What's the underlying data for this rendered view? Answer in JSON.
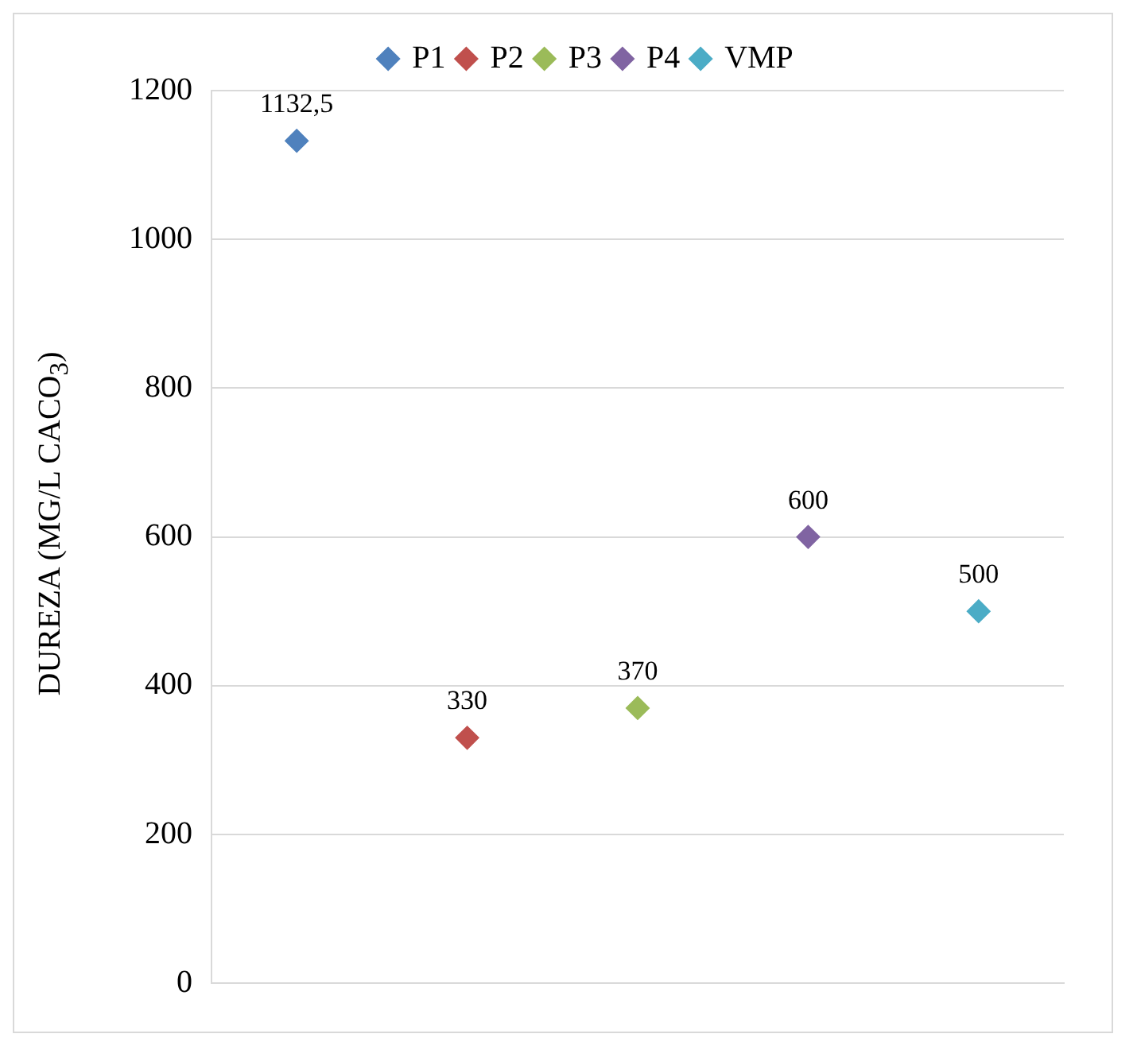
{
  "chart_data": {
    "type": "scatter",
    "ylabel": "DUREZA  (MG/L CACO$_{3}$)",
    "categories": [
      null,
      null,
      null,
      null,
      null
    ],
    "series": [
      {
        "name": "P1",
        "color": "#4f81bd",
        "values": [
          1132.5,
          null,
          null,
          null,
          null
        ],
        "value_labels": [
          "1132,5",
          null,
          null,
          null,
          null
        ]
      },
      {
        "name": "P2",
        "color": "#c0504d",
        "values": [
          null,
          330,
          null,
          null,
          null
        ],
        "value_labels": [
          null,
          "330",
          null,
          null,
          null
        ]
      },
      {
        "name": "P3",
        "color": "#9bbb59",
        "values": [
          null,
          null,
          370,
          null,
          null
        ],
        "value_labels": [
          null,
          null,
          "370",
          null,
          null
        ]
      },
      {
        "name": "P4",
        "color": "#8064a2",
        "values": [
          null,
          null,
          null,
          600,
          null
        ],
        "value_labels": [
          null,
          null,
          null,
          "600",
          null
        ]
      },
      {
        "name": "VMP",
        "color": "#4bacc6",
        "values": [
          null,
          null,
          null,
          null,
          500
        ],
        "value_labels": [
          null,
          null,
          null,
          null,
          "500"
        ]
      }
    ],
    "ylim": [
      0,
      1200
    ],
    "yticks": [
      0,
      200,
      400,
      600,
      800,
      1000,
      1200
    ],
    "grid": "y",
    "legend": "top",
    "marker": "diamond"
  }
}
